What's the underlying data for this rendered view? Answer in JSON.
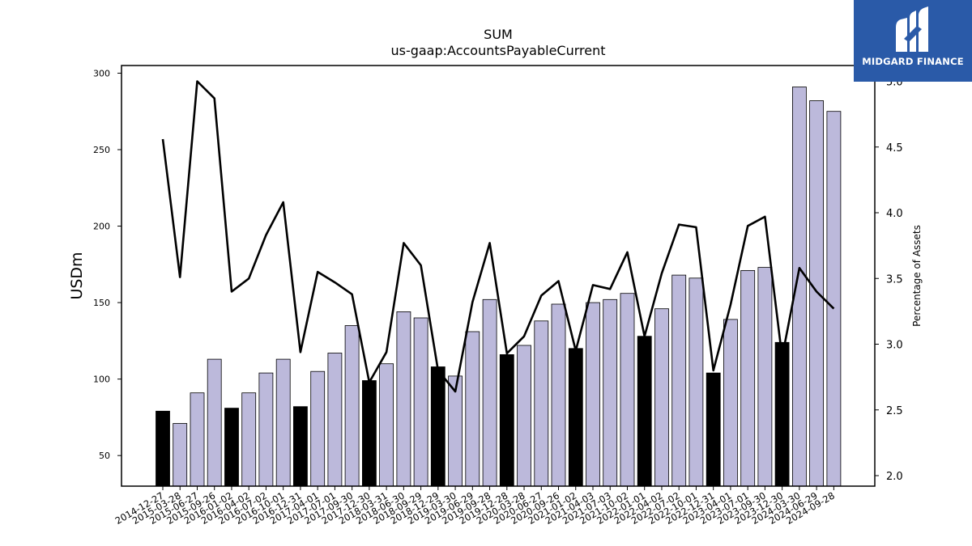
{
  "chart_data": {
    "type": "bar",
    "title": "SUM",
    "subtitle": "us-gaap:AccountsPayableCurrent",
    "ylabel": "USDm",
    "y2label": "Percentage of Assets",
    "ylim": [
      30,
      305
    ],
    "y2lim": [
      1.92,
      5.12
    ],
    "yticks": [
      50,
      100,
      150,
      200,
      250,
      300
    ],
    "y2ticks": [
      "2.0",
      "2.5",
      "3.0",
      "3.5",
      "4.0",
      "4.5",
      "5.0"
    ],
    "categories": [
      "2014-12-27",
      "2015-03-28",
      "2015-06-27",
      "2015-09-26",
      "2016-01-02",
      "2016-04-02",
      "2016-07-02",
      "2016-10-01",
      "2016-12-31",
      "2017-04-01",
      "2017-07-01",
      "2017-09-30",
      "2017-12-30",
      "2018-03-31",
      "2018-06-30",
      "2018-09-29",
      "2018-12-29",
      "2019-03-30",
      "2019-06-29",
      "2019-09-28",
      "2019-12-28",
      "2020-03-28",
      "2020-06-27",
      "2020-09-26",
      "2021-01-02",
      "2021-04-03",
      "2021-07-03",
      "2021-10-02",
      "2022-01-01",
      "2022-04-02",
      "2022-07-02",
      "2022-10-01",
      "2022-12-31",
      "2023-04-01",
      "2023-07-01",
      "2023-09-30",
      "2023-12-30",
      "2024-03-30",
      "2024-06-29",
      "2024-09-28"
    ],
    "series": [
      {
        "kind": "bar",
        "values": [
          79,
          71,
          91,
          113,
          81,
          91,
          104,
          113,
          82,
          105,
          117,
          135,
          99,
          110,
          144,
          140,
          108,
          102,
          131,
          152,
          116,
          122,
          138,
          149,
          120,
          150,
          152,
          156,
          128,
          146,
          168,
          166,
          104,
          139,
          171,
          173,
          124,
          291,
          282,
          275
        ],
        "highlight": [
          true,
          false,
          false,
          false,
          true,
          false,
          false,
          false,
          true,
          false,
          false,
          false,
          true,
          false,
          false,
          false,
          true,
          false,
          false,
          false,
          true,
          false,
          false,
          false,
          true,
          false,
          false,
          false,
          true,
          false,
          false,
          false,
          true,
          false,
          false,
          false,
          true,
          false,
          false,
          false
        ]
      },
      {
        "kind": "line",
        "axis": "right",
        "values": [
          4.56,
          3.51,
          5.0,
          4.87,
          3.4,
          3.5,
          3.83,
          4.08,
          2.94,
          3.55,
          3.47,
          3.38,
          2.71,
          2.94,
          3.77,
          3.6,
          2.8,
          2.64,
          3.32,
          3.77,
          2.93,
          3.06,
          3.37,
          3.48,
          2.95,
          3.45,
          3.42,
          3.7,
          3.06,
          3.54,
          3.91,
          3.89,
          2.8,
          3.3,
          3.9,
          3.97,
          2.9,
          3.58,
          3.4,
          3.27
        ]
      }
    ],
    "colors": {
      "bar": "#bcb9db",
      "bar_highlight": "#000000",
      "line": "#000000",
      "logo_bg": "#2a5aa8"
    },
    "grid": false,
    "legend": "none"
  },
  "logo": {
    "text": "MIDGARD FINANCE",
    "icon": "midgard-logo-icon"
  }
}
